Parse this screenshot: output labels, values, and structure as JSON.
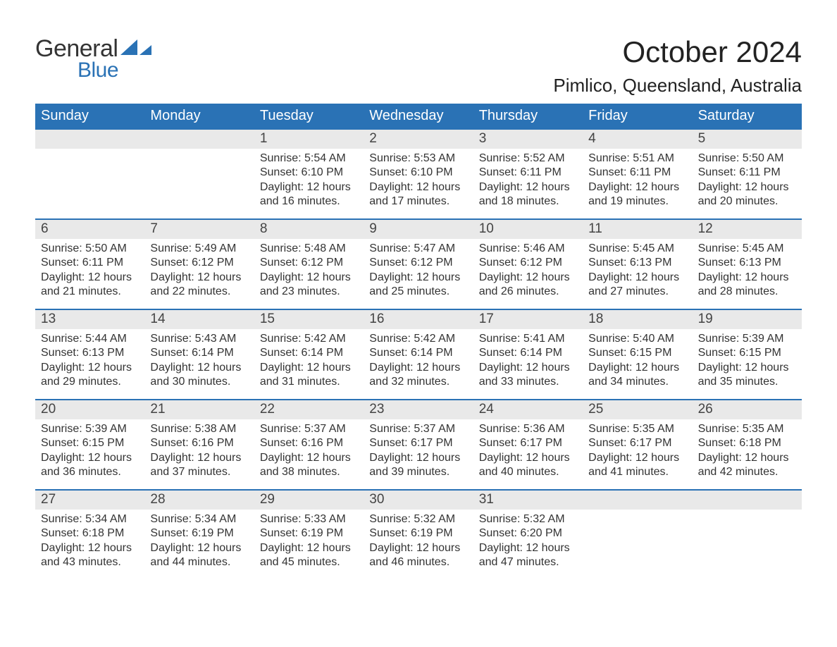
{
  "brand": {
    "main": "General",
    "sub": "Blue",
    "main_color": "#333333",
    "sub_color": "#2a72b5"
  },
  "title": {
    "month": "October 2024",
    "location": "Pimlico, Queensland, Australia"
  },
  "colors": {
    "header_bg": "#2a72b5",
    "header_text": "#ffffff",
    "date_strip_bg": "#e9e9e9",
    "body_text": "#333333",
    "row_divider": "#2a72b5",
    "background": "#ffffff"
  },
  "typography": {
    "month_fontsize": 42,
    "location_fontsize": 26,
    "day_header_fontsize": 20,
    "date_fontsize": 19,
    "body_fontsize": 16
  },
  "layout": {
    "columns": 7,
    "rows": 5,
    "header": "days_of_week"
  },
  "day_headers": [
    "Sunday",
    "Monday",
    "Tuesday",
    "Wednesday",
    "Thursday",
    "Friday",
    "Saturday"
  ],
  "weeks": [
    [
      {
        "date": "",
        "sunrise": "",
        "sunset": "",
        "daylight": "",
        "empty": true
      },
      {
        "date": "",
        "sunrise": "",
        "sunset": "",
        "daylight": "",
        "empty": true
      },
      {
        "date": "1",
        "sunrise": "Sunrise: 5:54 AM",
        "sunset": "Sunset: 6:10 PM",
        "daylight": "Daylight: 12 hours and 16 minutes."
      },
      {
        "date": "2",
        "sunrise": "Sunrise: 5:53 AM",
        "sunset": "Sunset: 6:10 PM",
        "daylight": "Daylight: 12 hours and 17 minutes."
      },
      {
        "date": "3",
        "sunrise": "Sunrise: 5:52 AM",
        "sunset": "Sunset: 6:11 PM",
        "daylight": "Daylight: 12 hours and 18 minutes."
      },
      {
        "date": "4",
        "sunrise": "Sunrise: 5:51 AM",
        "sunset": "Sunset: 6:11 PM",
        "daylight": "Daylight: 12 hours and 19 minutes."
      },
      {
        "date": "5",
        "sunrise": "Sunrise: 5:50 AM",
        "sunset": "Sunset: 6:11 PM",
        "daylight": "Daylight: 12 hours and 20 minutes."
      }
    ],
    [
      {
        "date": "6",
        "sunrise": "Sunrise: 5:50 AM",
        "sunset": "Sunset: 6:11 PM",
        "daylight": "Daylight: 12 hours and 21 minutes."
      },
      {
        "date": "7",
        "sunrise": "Sunrise: 5:49 AM",
        "sunset": "Sunset: 6:12 PM",
        "daylight": "Daylight: 12 hours and 22 minutes."
      },
      {
        "date": "8",
        "sunrise": "Sunrise: 5:48 AM",
        "sunset": "Sunset: 6:12 PM",
        "daylight": "Daylight: 12 hours and 23 minutes."
      },
      {
        "date": "9",
        "sunrise": "Sunrise: 5:47 AM",
        "sunset": "Sunset: 6:12 PM",
        "daylight": "Daylight: 12 hours and 25 minutes."
      },
      {
        "date": "10",
        "sunrise": "Sunrise: 5:46 AM",
        "sunset": "Sunset: 6:12 PM",
        "daylight": "Daylight: 12 hours and 26 minutes."
      },
      {
        "date": "11",
        "sunrise": "Sunrise: 5:45 AM",
        "sunset": "Sunset: 6:13 PM",
        "daylight": "Daylight: 12 hours and 27 minutes."
      },
      {
        "date": "12",
        "sunrise": "Sunrise: 5:45 AM",
        "sunset": "Sunset: 6:13 PM",
        "daylight": "Daylight: 12 hours and 28 minutes."
      }
    ],
    [
      {
        "date": "13",
        "sunrise": "Sunrise: 5:44 AM",
        "sunset": "Sunset: 6:13 PM",
        "daylight": "Daylight: 12 hours and 29 minutes."
      },
      {
        "date": "14",
        "sunrise": "Sunrise: 5:43 AM",
        "sunset": "Sunset: 6:14 PM",
        "daylight": "Daylight: 12 hours and 30 minutes."
      },
      {
        "date": "15",
        "sunrise": "Sunrise: 5:42 AM",
        "sunset": "Sunset: 6:14 PM",
        "daylight": "Daylight: 12 hours and 31 minutes."
      },
      {
        "date": "16",
        "sunrise": "Sunrise: 5:42 AM",
        "sunset": "Sunset: 6:14 PM",
        "daylight": "Daylight: 12 hours and 32 minutes."
      },
      {
        "date": "17",
        "sunrise": "Sunrise: 5:41 AM",
        "sunset": "Sunset: 6:14 PM",
        "daylight": "Daylight: 12 hours and 33 minutes."
      },
      {
        "date": "18",
        "sunrise": "Sunrise: 5:40 AM",
        "sunset": "Sunset: 6:15 PM",
        "daylight": "Daylight: 12 hours and 34 minutes."
      },
      {
        "date": "19",
        "sunrise": "Sunrise: 5:39 AM",
        "sunset": "Sunset: 6:15 PM",
        "daylight": "Daylight: 12 hours and 35 minutes."
      }
    ],
    [
      {
        "date": "20",
        "sunrise": "Sunrise: 5:39 AM",
        "sunset": "Sunset: 6:15 PM",
        "daylight": "Daylight: 12 hours and 36 minutes."
      },
      {
        "date": "21",
        "sunrise": "Sunrise: 5:38 AM",
        "sunset": "Sunset: 6:16 PM",
        "daylight": "Daylight: 12 hours and 37 minutes."
      },
      {
        "date": "22",
        "sunrise": "Sunrise: 5:37 AM",
        "sunset": "Sunset: 6:16 PM",
        "daylight": "Daylight: 12 hours and 38 minutes."
      },
      {
        "date": "23",
        "sunrise": "Sunrise: 5:37 AM",
        "sunset": "Sunset: 6:17 PM",
        "daylight": "Daylight: 12 hours and 39 minutes."
      },
      {
        "date": "24",
        "sunrise": "Sunrise: 5:36 AM",
        "sunset": "Sunset: 6:17 PM",
        "daylight": "Daylight: 12 hours and 40 minutes."
      },
      {
        "date": "25",
        "sunrise": "Sunrise: 5:35 AM",
        "sunset": "Sunset: 6:17 PM",
        "daylight": "Daylight: 12 hours and 41 minutes."
      },
      {
        "date": "26",
        "sunrise": "Sunrise: 5:35 AM",
        "sunset": "Sunset: 6:18 PM",
        "daylight": "Daylight: 12 hours and 42 minutes."
      }
    ],
    [
      {
        "date": "27",
        "sunrise": "Sunrise: 5:34 AM",
        "sunset": "Sunset: 6:18 PM",
        "daylight": "Daylight: 12 hours and 43 minutes."
      },
      {
        "date": "28",
        "sunrise": "Sunrise: 5:34 AM",
        "sunset": "Sunset: 6:19 PM",
        "daylight": "Daylight: 12 hours and 44 minutes."
      },
      {
        "date": "29",
        "sunrise": "Sunrise: 5:33 AM",
        "sunset": "Sunset: 6:19 PM",
        "daylight": "Daylight: 12 hours and 45 minutes."
      },
      {
        "date": "30",
        "sunrise": "Sunrise: 5:32 AM",
        "sunset": "Sunset: 6:19 PM",
        "daylight": "Daylight: 12 hours and 46 minutes."
      },
      {
        "date": "31",
        "sunrise": "Sunrise: 5:32 AM",
        "sunset": "Sunset: 6:20 PM",
        "daylight": "Daylight: 12 hours and 47 minutes."
      },
      {
        "date": "",
        "sunrise": "",
        "sunset": "",
        "daylight": "",
        "empty": true
      },
      {
        "date": "",
        "sunrise": "",
        "sunset": "",
        "daylight": "",
        "empty": true
      }
    ]
  ]
}
